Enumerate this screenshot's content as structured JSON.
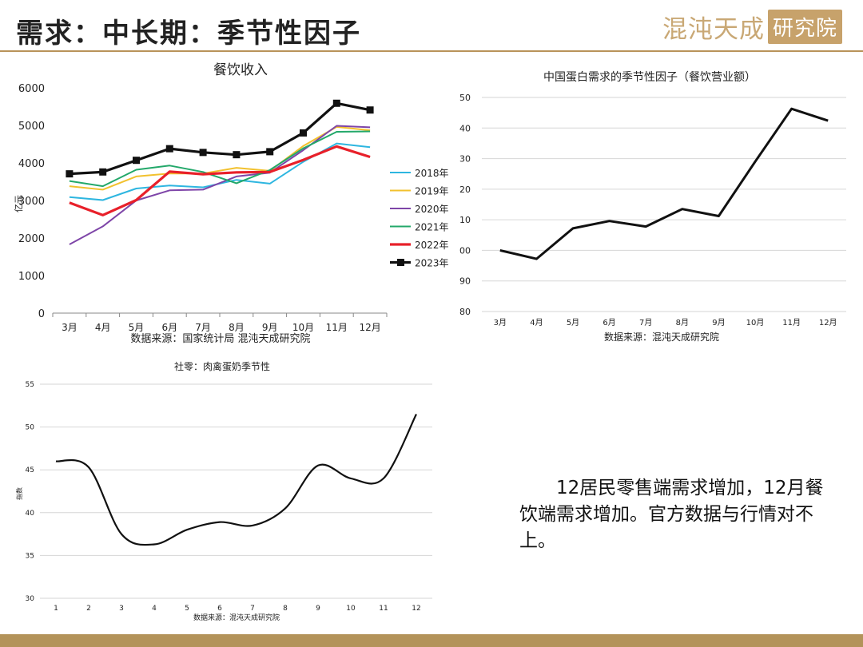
{
  "header": {
    "title": "需求：中长期：季节性因子",
    "logo_text": "混沌天成",
    "logo_box": "研究院"
  },
  "note": "12居民零售端需求增加，12月餐饮端需求增加。官方数据与行情对不上。",
  "chart_data": [
    {
      "type": "line",
      "title": "餐饮收入",
      "ylabel": "亿元",
      "xlabel": "",
      "source": "数据来源：国家统计局 混沌天成研究院",
      "categories": [
        "3月",
        "4月",
        "5月",
        "6月",
        "7月",
        "8月",
        "9月",
        "10月",
        "11月",
        "12月"
      ],
      "ylim": [
        0,
        6000
      ],
      "yticks": [
        "0",
        "1000",
        "2000",
        "3000",
        "4000",
        "5000",
        "6000"
      ],
      "legend_position": "right",
      "series": [
        {
          "name": "2018年",
          "color": "#2eb6e0",
          "values": [
            3090,
            3010,
            3320,
            3400,
            3350,
            3550,
            3450,
            4030,
            4520,
            4420
          ]
        },
        {
          "name": "2019年",
          "color": "#f2c12e",
          "values": [
            3380,
            3290,
            3640,
            3720,
            3720,
            3870,
            3790,
            4450,
            4960,
            4870
          ]
        },
        {
          "name": "2020年",
          "color": "#7e45a8",
          "values": [
            1830,
            2310,
            3000,
            3270,
            3290,
            3640,
            3740,
            4340,
            4990,
            4950
          ]
        },
        {
          "name": "2021年",
          "color": "#23a86a",
          "values": [
            3520,
            3380,
            3820,
            3930,
            3760,
            3460,
            3810,
            4390,
            4830,
            4840
          ]
        },
        {
          "name": "2022年",
          "color": "#e8202a",
          "values": [
            2940,
            2610,
            3010,
            3770,
            3700,
            3750,
            3760,
            4080,
            4440,
            4160
          ]
        },
        {
          "name": "2023年",
          "color": "#111111",
          "values": [
            3710,
            3760,
            4070,
            4380,
            4280,
            4220,
            4300,
            4800,
            5590,
            5410
          ]
        }
      ]
    },
    {
      "type": "line",
      "title": "中国蛋白需求的季节性因子（餐饮营业额）",
      "source": "数据来源：混沌天成研究院",
      "categories": [
        "3月",
        "4月",
        "5月",
        "6月",
        "7月",
        "8月",
        "9月",
        "10月",
        "11月",
        "12月"
      ],
      "ytick_labels": [
        "80",
        "90",
        "00",
        "10",
        "20",
        "30",
        "40",
        "50"
      ],
      "ylim": [
        80,
        150
      ],
      "grid": true,
      "series": [
        {
          "name": "",
          "color": "#111111",
          "values": [
            100.0,
            97.2,
            107.2,
            109.6,
            107.8,
            113.5,
            111.2,
            129.0,
            146.3,
            142.4
          ]
        }
      ]
    },
    {
      "type": "line",
      "title": "社零：肉禽蛋奶季节性",
      "ylabel": "指数",
      "source": "数据来源：混沌天成研究院",
      "categories": [
        "1",
        "2",
        "3",
        "4",
        "5",
        "6",
        "7",
        "8",
        "9",
        "10",
        "11",
        "12"
      ],
      "yticks": [
        "30",
        "35",
        "40",
        "45",
        "50",
        "55"
      ],
      "ylim": [
        30,
        55
      ],
      "grid": true,
      "series": [
        {
          "name": "",
          "color": "#111111",
          "values": [
            46.0,
            45.3,
            37.5,
            36.3,
            38.0,
            38.9,
            38.5,
            40.5,
            45.5,
            44.0,
            44.0,
            51.5
          ]
        }
      ]
    }
  ]
}
